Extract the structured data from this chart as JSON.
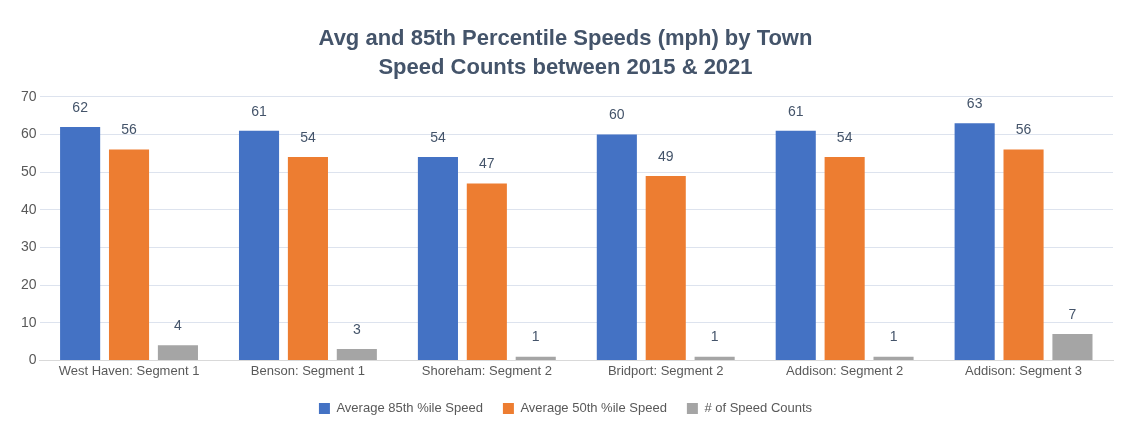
{
  "chart_data": {
    "type": "bar",
    "title": "Avg and 85th Percentile Speeds (mph) by Town",
    "subtitle": "Speed Counts between 2015 & 2021",
    "categories": [
      "West Haven: Segment 1",
      "Benson: Segment 1",
      "Shoreham: Segment 2",
      "Bridport: Segment 2",
      "Addison: Segment 2",
      "Addison: Segment 3"
    ],
    "series": [
      {
        "name": "Average 85th %ile Speed",
        "color": "#4472c4",
        "values": [
          62,
          61,
          54,
          60,
          61,
          63
        ]
      },
      {
        "name": "Average 50th %ile Speed",
        "color": "#ed7d31",
        "values": [
          56,
          54,
          47,
          49,
          54,
          56
        ]
      },
      {
        "name": "# of Speed Counts",
        "color": "#a5a5a5",
        "values": [
          4,
          3,
          1,
          1,
          1,
          7
        ]
      }
    ],
    "ylim": [
      0,
      70
    ],
    "yticks": [
      0,
      10,
      20,
      30,
      40,
      50,
      60,
      70
    ],
    "grid": "y",
    "legend": "bottom",
    "data_labels": true
  }
}
